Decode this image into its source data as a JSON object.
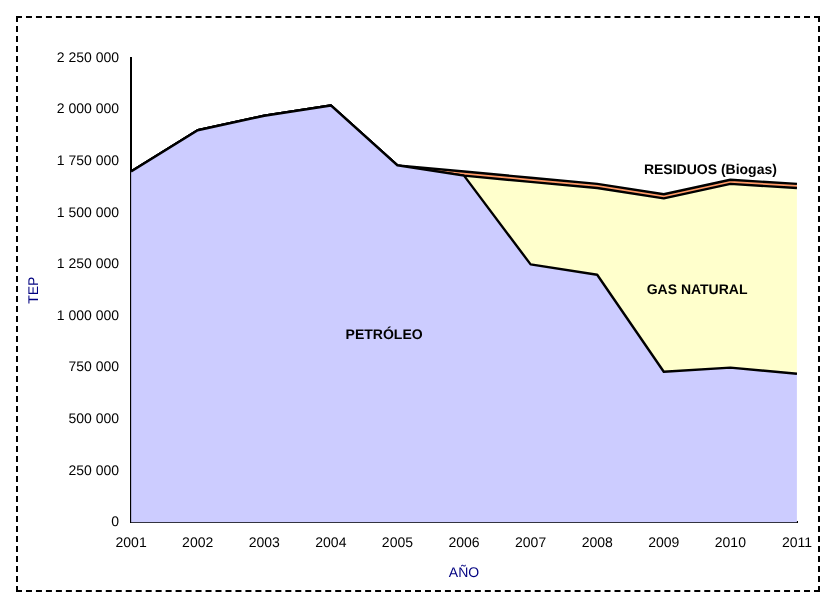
{
  "chart_data": {
    "type": "area",
    "stacked": true,
    "xlabel": "AÑO",
    "ylabel": "TEP",
    "categories": [
      "2001",
      "2002",
      "2003",
      "2004",
      "2005",
      "2006",
      "2007",
      "2008",
      "2009",
      "2010",
      "2011"
    ],
    "series": [
      {
        "name": "PETRÓLEO",
        "color": "#ccccff",
        "values": [
          1700000,
          1900000,
          1970000,
          2020000,
          1730000,
          1680000,
          1250000,
          1200000,
          730000,
          750000,
          720000
        ]
      },
      {
        "name": "GAS NATURAL",
        "color": "#ffffcc",
        "values": [
          0,
          0,
          0,
          0,
          0,
          0,
          400000,
          420000,
          840000,
          890000,
          900000
        ]
      },
      {
        "name": "RESIDUOS (Biogas)",
        "color": "#ff9966",
        "values": [
          0,
          0,
          0,
          0,
          0,
          20000,
          20000,
          20000,
          20000,
          20000,
          20000
        ]
      }
    ],
    "ylim": [
      0,
      2250000
    ],
    "yticks": [
      {
        "value": 0,
        "label": "0"
      },
      {
        "value": 250000,
        "label": "250 000"
      },
      {
        "value": 500000,
        "label": "500 000"
      },
      {
        "value": 750000,
        "label": "750 000"
      },
      {
        "value": 1000000,
        "label": "1 000 000"
      },
      {
        "value": 1250000,
        "label": "1 250 000"
      },
      {
        "value": 1500000,
        "label": "1 500 000"
      },
      {
        "value": 1750000,
        "label": "1 750 000"
      },
      {
        "value": 2000000,
        "label": "2 000 000"
      },
      {
        "value": 2250000,
        "label": "2 250 000"
      }
    ],
    "legend": false
  }
}
